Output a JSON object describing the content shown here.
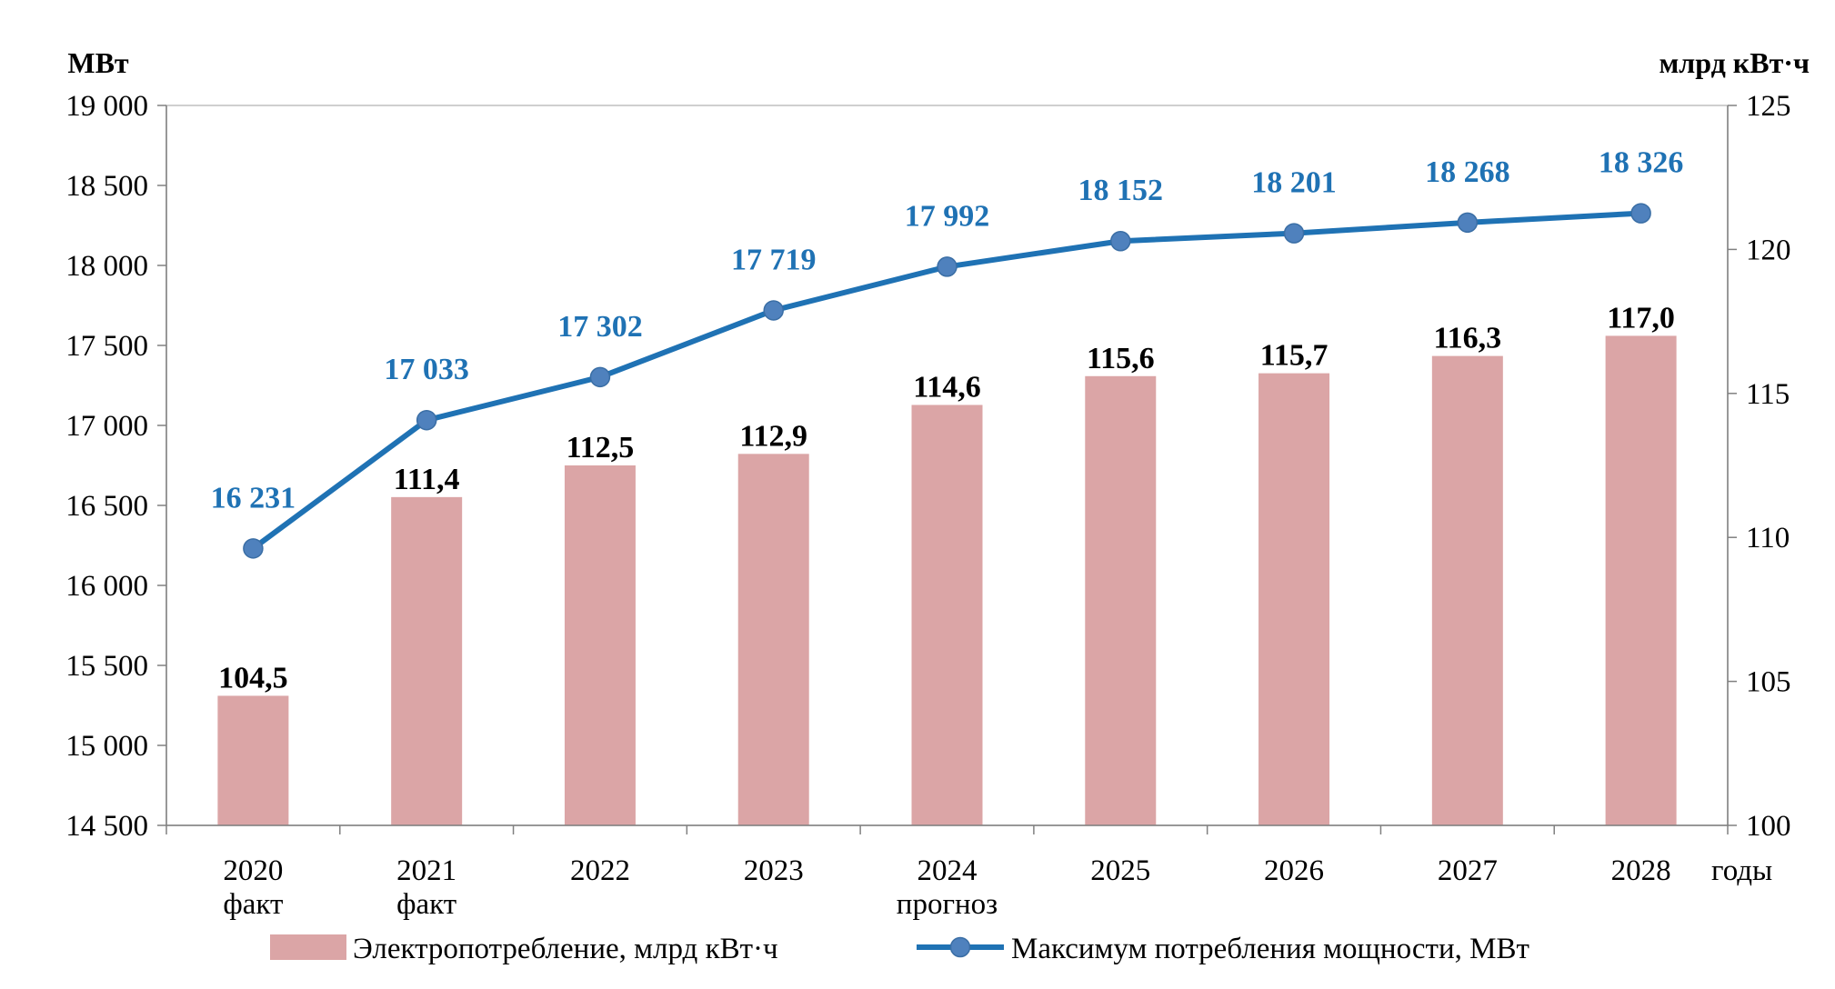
{
  "chart_data": {
    "type": "bar",
    "categories": [
      [
        "2020",
        "факт"
      ],
      [
        "2021",
        "факт"
      ],
      [
        "2022"
      ],
      [
        "2023"
      ],
      [
        "2024",
        "прогноз"
      ],
      [
        "2025"
      ],
      [
        "2026"
      ],
      [
        "2027"
      ],
      [
        "2028"
      ]
    ],
    "x_unit_label": "годы",
    "left_axis": {
      "unit": "МВт",
      "range": [
        14500,
        19000
      ],
      "ticks": [
        14500,
        15000,
        15500,
        16000,
        16500,
        17000,
        17500,
        18000,
        18500,
        19000
      ],
      "tick_labels": [
        "14 500",
        "15 000",
        "15 500",
        "16 000",
        "16 500",
        "17 000",
        "17 500",
        "18 000",
        "18 500",
        "19 000"
      ]
    },
    "right_axis": {
      "unit": "млрд кВт·ч",
      "range": [
        100,
        125
      ],
      "ticks": [
        100,
        105,
        110,
        115,
        120,
        125
      ],
      "tick_labels": [
        "100",
        "105",
        "110",
        "115",
        "120",
        "125"
      ]
    },
    "series": [
      {
        "name": "Электропотребление, млрд кВт·ч",
        "type": "bar",
        "axis": "right",
        "color": "#DBA5A6",
        "values": [
          104.5,
          111.4,
          112.5,
          112.9,
          114.6,
          115.6,
          115.7,
          116.3,
          117.0
        ],
        "labels": [
          "104,5",
          "111,4",
          "112,5",
          "112,9",
          "114,6",
          "115,6",
          "115,7",
          "116,3",
          "117,0"
        ]
      },
      {
        "name": "Максимум потребления мощности, МВт",
        "type": "line",
        "axis": "left",
        "color": "#1F72B4",
        "marker_color": "#4F81BD",
        "values": [
          16231,
          17033,
          17302,
          17719,
          17992,
          18152,
          18201,
          18268,
          18326
        ],
        "labels": [
          "16 231",
          "17 033",
          "17 302",
          "17 719",
          "17 992",
          "18 152",
          "18 201",
          "18 268",
          "18 326"
        ]
      }
    ],
    "grid": false,
    "legend_position": "bottom"
  }
}
